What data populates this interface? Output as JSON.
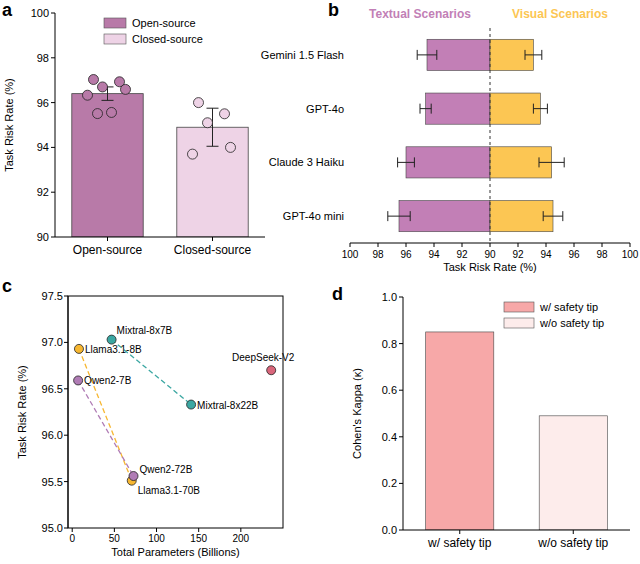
{
  "chart_data": [
    {
      "type": "bar",
      "title": "a",
      "categories": [
        "Open-source",
        "Closed-source"
      ],
      "values": [
        96.4,
        94.9
      ],
      "errors": [
        0.3,
        0.85
      ],
      "colors": [
        "#b87aa8",
        "#eed3e6"
      ],
      "points": [
        [
          97.03,
          96.93,
          96.7,
          96.59,
          96.33,
          95.56,
          95.51
        ],
        [
          96.0,
          95.5,
          95.1,
          94.0,
          93.7
        ]
      ],
      "ylabel": "Task Risk Rate (%)",
      "ylim": [
        90,
        100
      ],
      "yticks": [
        90,
        92,
        94,
        96,
        98,
        100
      ],
      "legend": "top"
    },
    {
      "type": "bar",
      "orientation": "horizontal",
      "title": "b",
      "categories": [
        "Gemini 1.5 Flash",
        "GPT-4o",
        "Claude 3 Haiku",
        "GPT-4o mini"
      ],
      "series": [
        {
          "name": "Textual Scenarios",
          "color": "#c27fb6",
          "values": [
            94.5,
            94.6,
            96.0,
            96.5
          ],
          "errors": [
            0.7,
            0.4,
            0.6,
            0.8
          ]
        },
        {
          "name": "Visual Scenarios",
          "color": "#fcc653",
          "values": [
            93.1,
            93.6,
            94.4,
            94.5
          ],
          "errors": [
            0.6,
            0.5,
            0.9,
            0.7
          ]
        }
      ],
      "xlabel": "Task Risk Rate (%)",
      "xlim": [
        90,
        100
      ],
      "xticks": [
        90,
        92,
        94,
        96,
        98,
        100
      ]
    },
    {
      "type": "scatter",
      "title": "c",
      "series": [
        {
          "color": "#f7b731",
          "line_style": "dashed",
          "x": [
            8,
            70.6
          ],
          "values": [
            96.93,
            95.51
          ],
          "labels": [
            "Llama3.1-8B",
            "Llama3.1-70B"
          ]
        },
        {
          "color": "#b07cb5",
          "line_style": "dashed",
          "x": [
            7,
            72.7
          ],
          "values": [
            96.59,
            95.56
          ],
          "labels": [
            "Qwen2-7B",
            "Qwen2-72B"
          ]
        },
        {
          "color": "#3ba7a2",
          "line_style": "dashed",
          "x": [
            46.7,
            141
          ],
          "values": [
            97.03,
            96.33
          ],
          "labels": [
            "Mixtral-8x7B",
            "Mixtral-8x22B"
          ]
        },
        {
          "color": "#d9667b",
          "line_style": "none",
          "x": [
            236
          ],
          "values": [
            96.7
          ],
          "labels": [
            "DeepSeek-V2"
          ]
        }
      ],
      "xlabel": "Total Parameters (Billions)",
      "ylabel": "Task Risk Rate (%)",
      "xlim": [
        -5,
        250
      ],
      "xticks": [
        0,
        50,
        100,
        150,
        200
      ],
      "ylim": [
        95,
        97.5
      ],
      "yticks": [
        {
          "value": 95,
          "label": "95.0"
        },
        95.5,
        {
          "value": 96,
          "label": "96.0"
        },
        96.5,
        {
          "value": 97,
          "label": "97.0"
        },
        97.5
      ]
    },
    {
      "type": "bar",
      "title": "d",
      "categories": [
        "w/ safety tip",
        "w/o safety tip"
      ],
      "values": [
        0.85,
        0.49
      ],
      "colors": [
        "#f7a8a8",
        "#fdeceb"
      ],
      "ylabel": "Cohen's Kappa (κ)",
      "ylim": [
        0,
        1
      ],
      "yticks": [
        {
          "value": 0,
          "label": "0.0"
        },
        0.2,
        0.4,
        0.6,
        0.8,
        {
          "value": 1,
          "label": "1.0"
        }
      ],
      "legend": "upper-right"
    }
  ]
}
